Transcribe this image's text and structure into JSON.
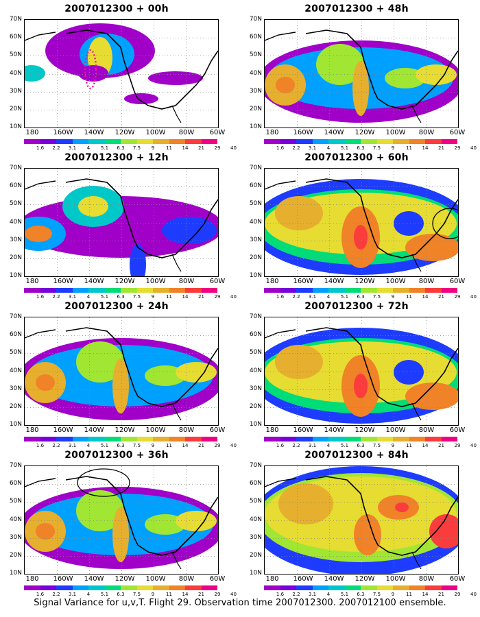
{
  "colorbar": {
    "labels": [
      "1.6",
      "2.2",
      "3.1",
      "4",
      "5.1",
      "6.3",
      "7.5",
      "9",
      "11",
      "14",
      "21",
      "29",
      "40"
    ],
    "colors": [
      "#a000c8",
      "#7800dc",
      "#1e3cff",
      "#00a0ff",
      "#00c8c8",
      "#00dc78",
      "#a0e632",
      "#e6dc32",
      "#e6af2d",
      "#f08228",
      "#fa3c3c",
      "#f00082"
    ]
  },
  "axes": {
    "y_labels": [
      "70N",
      "60N",
      "50N",
      "40N",
      "30N",
      "20N",
      "10N"
    ],
    "x_labels": [
      "180",
      "160W",
      "140W",
      "120W",
      "100W",
      "80W",
      "60W"
    ]
  },
  "panels": [
    {
      "id": "p00",
      "title": "2007012300 + 00h",
      "col": 0,
      "row": 0,
      "level": 0
    },
    {
      "id": "p48",
      "title": "2007012300 + 48h",
      "col": 1,
      "row": 0,
      "level": 2
    },
    {
      "id": "p12",
      "title": "2007012300 + 12h",
      "col": 0,
      "row": 1,
      "level": 1
    },
    {
      "id": "p60",
      "title": "2007012300 + 60h",
      "col": 1,
      "row": 1,
      "level": 3
    },
    {
      "id": "p24",
      "title": "2007012300 + 24h",
      "col": 0,
      "row": 2,
      "level": 2
    },
    {
      "id": "p72",
      "title": "2007012300 + 72h",
      "col": 1,
      "row": 2,
      "level": 3
    },
    {
      "id": "p36",
      "title": "2007012300 + 36h",
      "col": 0,
      "row": 3,
      "level": 2
    },
    {
      "id": "p84",
      "title": "2007012300 + 84h",
      "col": 1,
      "row": 3,
      "level": 4
    }
  ],
  "caption": "Signal Variance for u,v,T. Flight 29. Observation time 2007012300. 2007012100 ensemble."
}
